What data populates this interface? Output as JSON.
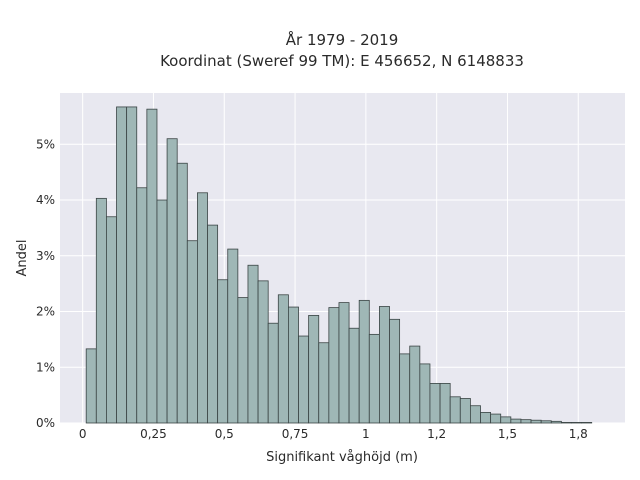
{
  "chart_data": {
    "type": "bar",
    "title_line1": "År 1979 - 2019",
    "title_line2": "Koordinat (Sweref 99 TM): E 456652, N 6148833",
    "xlabel": "Signifikant våghöjd (m)",
    "ylabel": "Andel",
    "xlim": [
      -0.08,
      1.915
    ],
    "ylim": [
      0,
      5.92
    ],
    "bin_start": 0.0125,
    "bin_width": 0.0357,
    "x_ticks": [
      {
        "value": 0,
        "label": "0"
      },
      {
        "value": 0.25,
        "label": "0,25"
      },
      {
        "value": 0.5,
        "label": "0,5"
      },
      {
        "value": 0.75,
        "label": "0,75"
      },
      {
        "value": 1,
        "label": "1"
      },
      {
        "value": 1.25,
        "label": "1,2"
      },
      {
        "value": 1.5,
        "label": "1,5"
      },
      {
        "value": 1.75,
        "label": "1,8"
      }
    ],
    "y_ticks": [
      {
        "value": 0,
        "label": "0%"
      },
      {
        "value": 1,
        "label": "1%"
      },
      {
        "value": 2,
        "label": "2%"
      },
      {
        "value": 3,
        "label": "3%"
      },
      {
        "value": 4,
        "label": "4%"
      },
      {
        "value": 5,
        "label": "5%"
      }
    ],
    "grid": true,
    "bar_color": "#9fb7b6",
    "bar_edge": "#3a4444",
    "plot_bg": "#e8e8f0",
    "values": [
      1.33,
      4.03,
      3.7,
      5.67,
      5.67,
      4.22,
      5.63,
      4.0,
      5.1,
      4.66,
      3.27,
      4.13,
      3.55,
      2.57,
      3.12,
      2.25,
      2.83,
      2.55,
      1.79,
      2.3,
      2.08,
      1.56,
      1.93,
      1.44,
      2.07,
      2.16,
      1.7,
      2.2,
      1.59,
      2.09,
      1.86,
      1.24,
      1.38,
      1.06,
      0.71,
      0.71,
      0.47,
      0.44,
      0.31,
      0.19,
      0.16,
      0.11,
      0.07,
      0.06,
      0.05,
      0.04,
      0.03,
      0.01,
      0.01,
      0.01
    ]
  }
}
